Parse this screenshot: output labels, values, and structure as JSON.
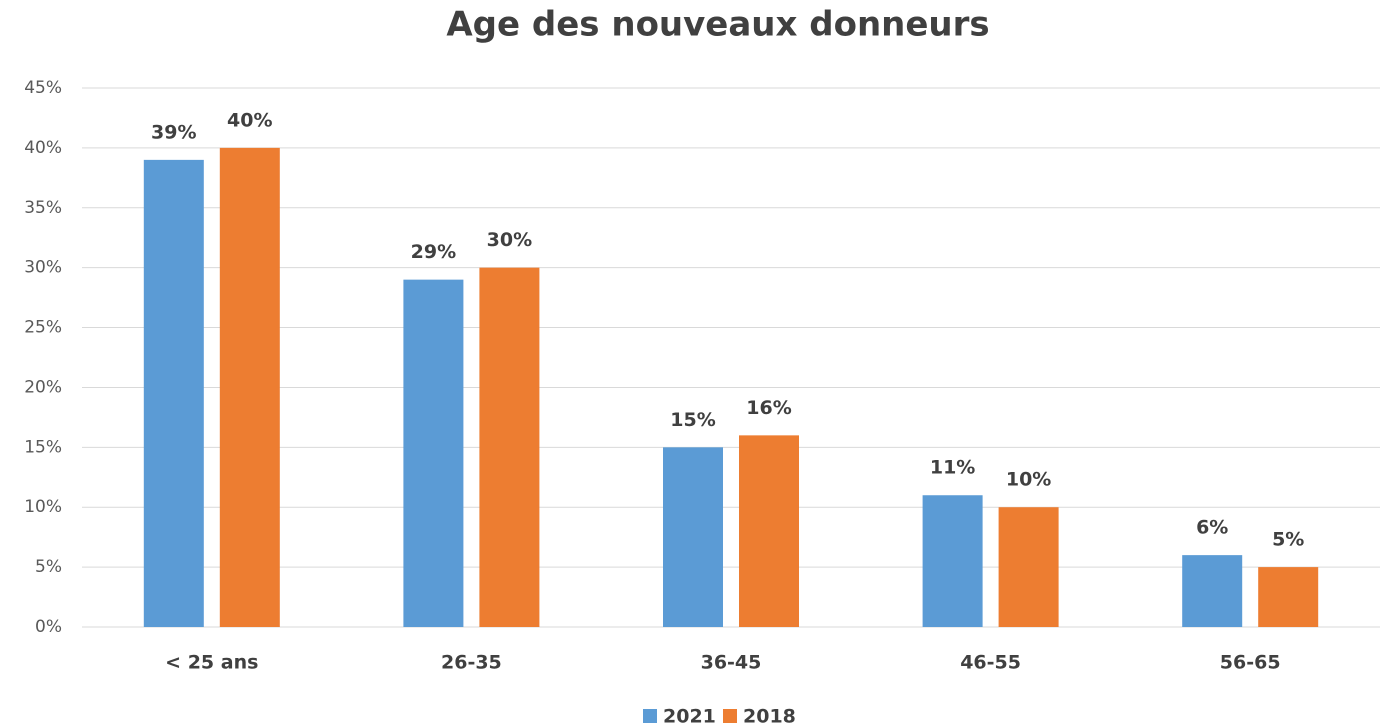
{
  "chart_data": {
    "type": "bar",
    "title": "Age des nouveaux donneurs",
    "categories": [
      "< 25 ans",
      "26-35",
      "36-45",
      "46-55",
      "56-65"
    ],
    "series": [
      {
        "name": "2021",
        "color": "#5b9bd5",
        "values": [
          39,
          29,
          15,
          11,
          6
        ],
        "value_labels": [
          "39%",
          "29%",
          "15%",
          "11%",
          "6%"
        ]
      },
      {
        "name": "2018",
        "color": "#ed7d31",
        "values": [
          40,
          30,
          16,
          10,
          5
        ],
        "value_labels": [
          "40%",
          "30%",
          "16%",
          "10%",
          "5%"
        ]
      }
    ],
    "ylim": [
      0,
      45
    ],
    "yticks": [
      {
        "value": 0,
        "label": "0%"
      },
      {
        "value": 5,
        "label": "5%"
      },
      {
        "value": 10,
        "label": "10%"
      },
      {
        "value": 15,
        "label": "15%"
      },
      {
        "value": 20,
        "label": "20%"
      },
      {
        "value": 25,
        "label": "25%"
      },
      {
        "value": 30,
        "label": "30%"
      },
      {
        "value": 35,
        "label": "35%"
      },
      {
        "value": 40,
        "label": "40%"
      },
      {
        "value": 45,
        "label": "45%"
      }
    ],
    "grid": true,
    "legend": "bottom"
  }
}
